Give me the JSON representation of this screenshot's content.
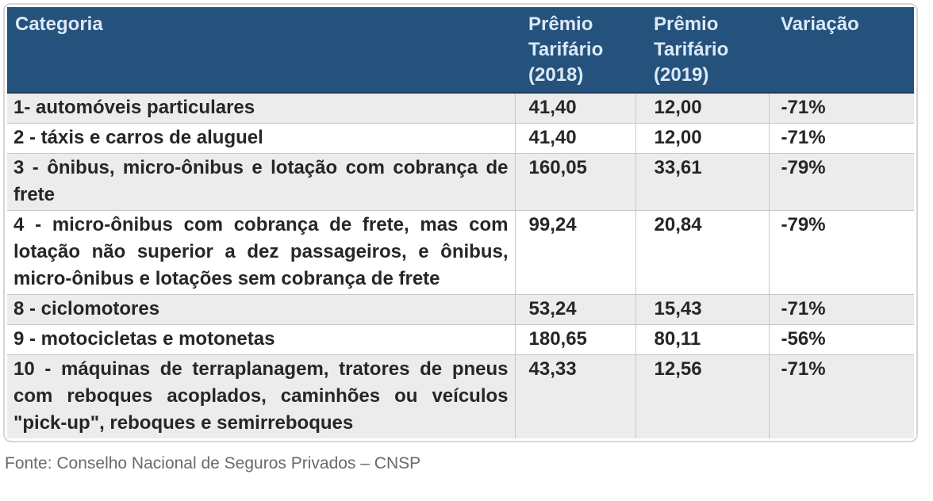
{
  "colors": {
    "header_bg": "#24527D",
    "header_text": "#DCE9F5",
    "stripe_bg": "#ECECEC",
    "grid_border": "#C7C7C7",
    "container_border": "#D6D6D6",
    "footer_text": "#6A6A6A"
  },
  "chart_data": {
    "type": "table",
    "columns": [
      "Categoria",
      "Prêmio\nTarifário\n(2018)",
      "Prêmio\nTarifário\n(2019)",
      "Variação"
    ],
    "rows": [
      {
        "categoria": "1- automóveis particulares",
        "premio_2018": "41,40",
        "premio_2019": "12,00",
        "variacao": "-71%"
      },
      {
        "categoria": "2 - táxis e carros de aluguel",
        "premio_2018": "41,40",
        "premio_2019": "12,00",
        "variacao": "-71%"
      },
      {
        "categoria": "3 - ônibus, micro-ônibus e lotação com cobrança de frete",
        "premio_2018": "160,05",
        "premio_2019": "33,61",
        "variacao": "-79%"
      },
      {
        "categoria": "4 - micro-ônibus com cobrança de frete, mas com lotação não superior a dez passageiros, e ônibus, micro-ônibus e lotações sem cobrança de frete",
        "premio_2018": "99,24",
        "premio_2019": "20,84",
        "variacao": "-79%"
      },
      {
        "categoria": "8 - ciclomotores",
        "premio_2018": "53,24",
        "premio_2019": "15,43",
        "variacao": "-71%"
      },
      {
        "categoria": "9 - motocicletas e motonetas",
        "premio_2018": "180,65",
        "premio_2019": "80,11",
        "variacao": "-56%"
      },
      {
        "categoria": "10 - máquinas de terraplanagem, tratores de pneus com reboques acoplados, caminhões ou veículos \"pick-up\", reboques e semirreboques",
        "premio_2018": "43,33",
        "premio_2019": "12,56",
        "variacao": "-71%"
      }
    ]
  },
  "footer": {
    "source": "Fonte: Conselho Nacional de Seguros Privados – CNSP"
  }
}
